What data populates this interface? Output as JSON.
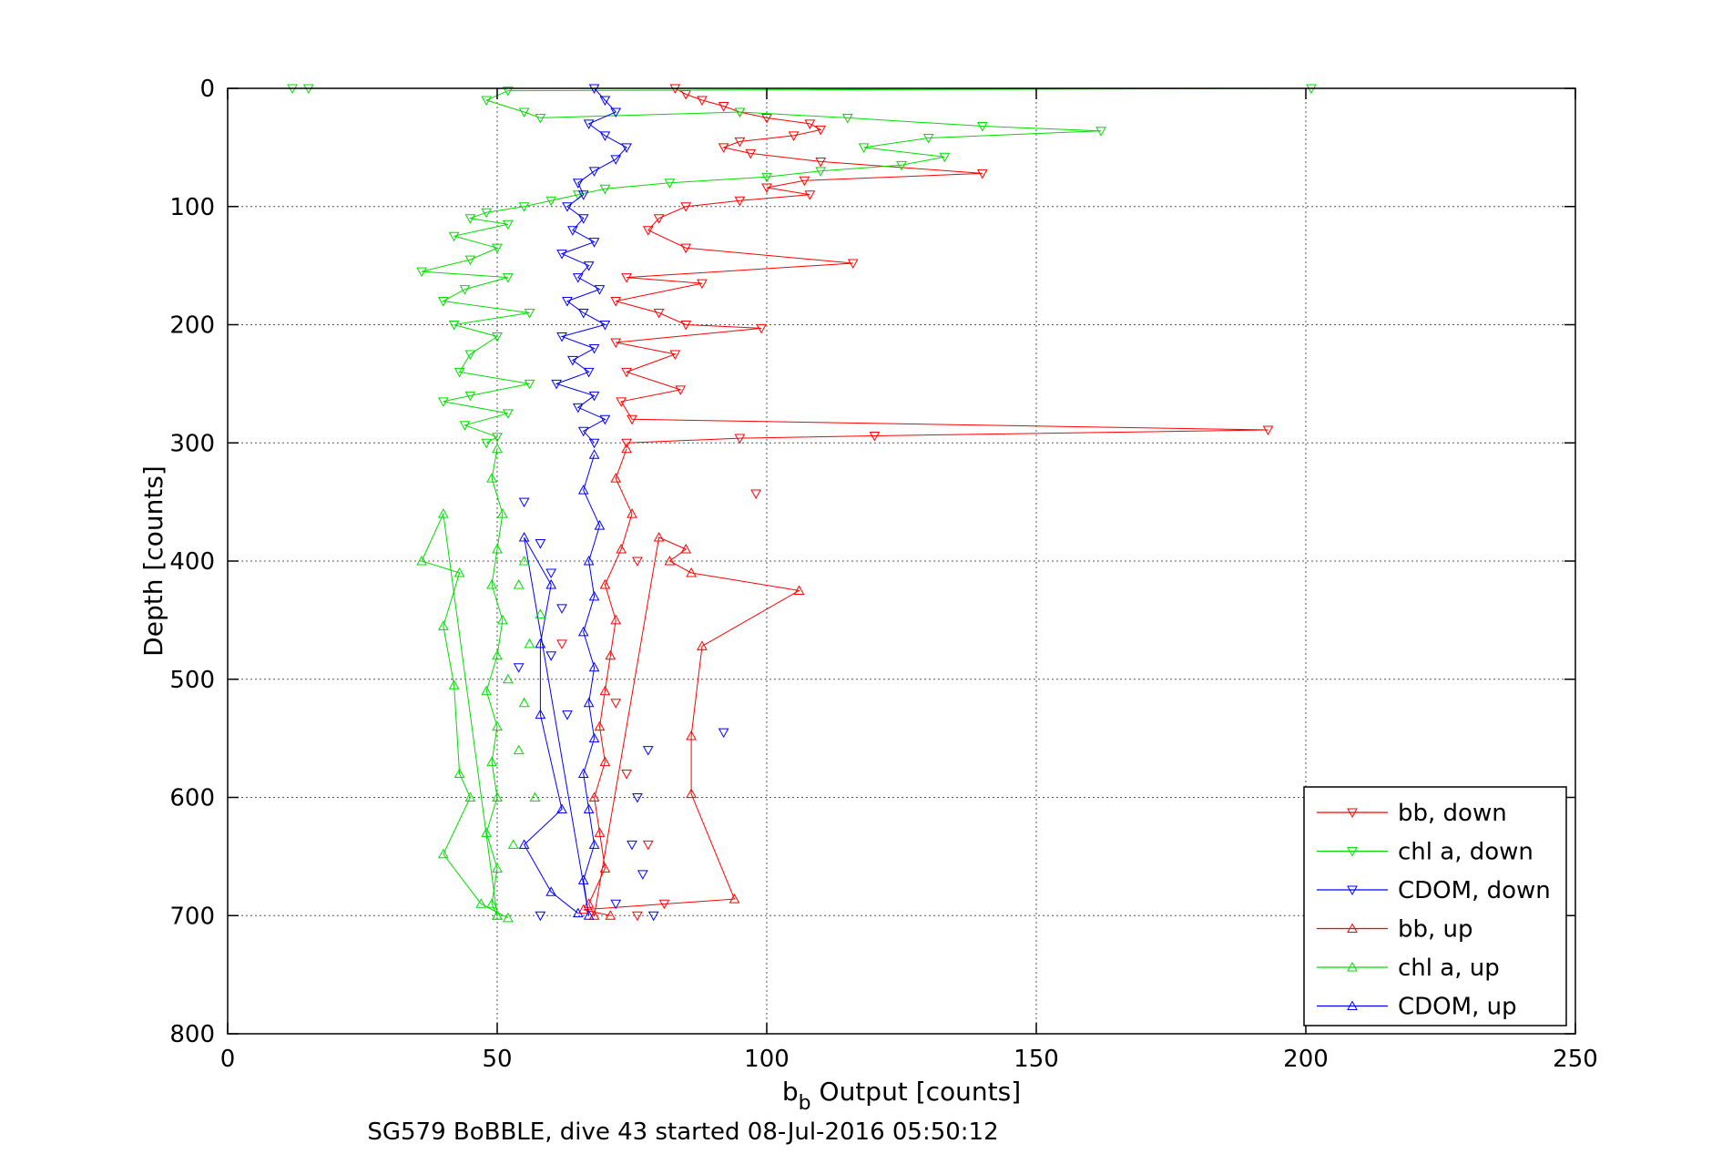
{
  "chart_data": {
    "type": "scatter",
    "xlabel_main": "b",
    "xlabel_sub": "b",
    "xlabel_rest": " Output [counts]",
    "ylabel": "Depth [counts]",
    "caption": "SG579 BoBBLE, dive 43 started 08-Jul-2016 05:50:12",
    "xlim": [
      0,
      250
    ],
    "ylim": [
      0,
      800
    ],
    "y_reversed": true,
    "grid": true,
    "legend_position": "bottom-right",
    "x_ticks": [
      "0",
      "50",
      "100",
      "150",
      "200",
      "250"
    ],
    "y_ticks": [
      "0",
      "100",
      "200",
      "300",
      "400",
      "500",
      "600",
      "700",
      "800"
    ],
    "colors": {
      "bb": "#ff0000",
      "chl": "#00dd00",
      "cdom": "#0000ff"
    },
    "series": [
      {
        "name": "bb, down",
        "color": "#ff0000",
        "marker": "triangle-down",
        "connected": true,
        "points": [
          [
            83,
            0
          ],
          [
            85,
            5
          ],
          [
            88,
            10
          ],
          [
            92,
            15
          ],
          [
            95,
            20
          ],
          [
            100,
            25
          ],
          [
            108,
            30
          ],
          [
            110,
            35
          ],
          [
            105,
            40
          ],
          [
            95,
            45
          ],
          [
            92,
            50
          ],
          [
            97,
            55
          ],
          [
            110,
            62
          ],
          [
            140,
            72
          ],
          [
            107,
            78
          ],
          [
            100,
            84
          ],
          [
            108,
            90
          ],
          [
            95,
            95
          ],
          [
            85,
            100
          ],
          [
            80,
            110
          ],
          [
            78,
            120
          ],
          [
            85,
            135
          ],
          [
            116,
            148
          ],
          [
            74,
            160
          ],
          [
            88,
            165
          ],
          [
            72,
            180
          ],
          [
            80,
            190
          ],
          [
            85,
            200
          ],
          [
            99,
            203
          ],
          [
            72,
            215
          ],
          [
            83,
            225
          ],
          [
            74,
            240
          ],
          [
            84,
            255
          ],
          [
            73,
            265
          ],
          [
            75,
            280
          ],
          [
            193,
            289
          ],
          [
            120,
            294
          ],
          [
            95,
            296
          ],
          [
            74,
            300
          ]
        ]
      },
      {
        "name": "chl a, down",
        "color": "#00dd00",
        "marker": "triangle-down",
        "connected": true,
        "points": [
          [
            12,
            0
          ],
          [
            15,
            0
          ],
          [
            201,
            0
          ],
          [
            52,
            2
          ],
          [
            48,
            10
          ],
          [
            55,
            20
          ],
          [
            58,
            25
          ],
          [
            95,
            20
          ],
          [
            115,
            25
          ],
          [
            140,
            32
          ],
          [
            162,
            36
          ],
          [
            130,
            42
          ],
          [
            118,
            50
          ],
          [
            133,
            58
          ],
          [
            125,
            65
          ],
          [
            110,
            70
          ],
          [
            100,
            75
          ],
          [
            82,
            80
          ],
          [
            70,
            85
          ],
          [
            65,
            90
          ],
          [
            60,
            95
          ],
          [
            55,
            100
          ],
          [
            48,
            105
          ],
          [
            45,
            110
          ],
          [
            52,
            115
          ],
          [
            42,
            125
          ],
          [
            50,
            135
          ],
          [
            45,
            145
          ],
          [
            36,
            155
          ],
          [
            52,
            160
          ],
          [
            44,
            170
          ],
          [
            40,
            180
          ],
          [
            56,
            190
          ],
          [
            42,
            200
          ],
          [
            50,
            210
          ],
          [
            45,
            225
          ],
          [
            43,
            240
          ],
          [
            56,
            250
          ],
          [
            45,
            260
          ],
          [
            40,
            265
          ],
          [
            52,
            275
          ],
          [
            44,
            285
          ],
          [
            50,
            295
          ],
          [
            48,
            300
          ]
        ]
      },
      {
        "name": "CDOM, down",
        "color": "#0000ff",
        "marker": "triangle-down",
        "connected": true,
        "points": [
          [
            68,
            0
          ],
          [
            70,
            10
          ],
          [
            72,
            20
          ],
          [
            67,
            30
          ],
          [
            70,
            40
          ],
          [
            74,
            50
          ],
          [
            72,
            60
          ],
          [
            68,
            70
          ],
          [
            65,
            80
          ],
          [
            66,
            90
          ],
          [
            63,
            100
          ],
          [
            66,
            110
          ],
          [
            64,
            120
          ],
          [
            68,
            130
          ],
          [
            62,
            140
          ],
          [
            67,
            150
          ],
          [
            65,
            160
          ],
          [
            69,
            170
          ],
          [
            63,
            180
          ],
          [
            66,
            190
          ],
          [
            70,
            200
          ],
          [
            62,
            210
          ],
          [
            68,
            220
          ],
          [
            64,
            230
          ],
          [
            67,
            240
          ],
          [
            61,
            250
          ],
          [
            68,
            260
          ],
          [
            65,
            270
          ],
          [
            70,
            280
          ],
          [
            66,
            290
          ],
          [
            68,
            300
          ]
        ]
      },
      {
        "name": "bb, up",
        "color": "#ff0000",
        "marker": "triangle-up",
        "connected": true,
        "points": [
          [
            74,
            305
          ],
          [
            72,
            330
          ],
          [
            75,
            360
          ],
          [
            73,
            390
          ],
          [
            70,
            420
          ],
          [
            72,
            450
          ],
          [
            71,
            480
          ],
          [
            70,
            510
          ],
          [
            69,
            540
          ],
          [
            70,
            570
          ],
          [
            68,
            600
          ],
          [
            69,
            630
          ],
          [
            70,
            660
          ],
          [
            67,
            690
          ],
          [
            68,
            700
          ],
          [
            80,
            380
          ],
          [
            85,
            390
          ],
          [
            82,
            400
          ],
          [
            86,
            410
          ],
          [
            106,
            425
          ],
          [
            88,
            472
          ],
          [
            86,
            548
          ],
          [
            86,
            597
          ],
          [
            94,
            686
          ],
          [
            66,
            695
          ],
          [
            71,
            700
          ]
        ]
      },
      {
        "name": "chl a, up",
        "color": "#00dd00",
        "marker": "triangle-up",
        "connected": true,
        "points": [
          [
            50,
            305
          ],
          [
            49,
            330
          ],
          [
            51,
            360
          ],
          [
            50,
            390
          ],
          [
            49,
            420
          ],
          [
            51,
            450
          ],
          [
            50,
            480
          ],
          [
            48,
            510
          ],
          [
            50,
            540
          ],
          [
            49,
            570
          ],
          [
            50,
            600
          ],
          [
            48,
            630
          ],
          [
            50,
            660
          ],
          [
            49,
            690
          ],
          [
            50,
            700
          ],
          [
            40,
            360
          ],
          [
            36,
            400
          ],
          [
            43,
            410
          ],
          [
            40,
            455
          ],
          [
            42,
            505
          ],
          [
            43,
            580
          ],
          [
            45,
            600
          ],
          [
            40,
            648
          ],
          [
            47,
            690
          ],
          [
            52,
            702
          ]
        ]
      },
      {
        "name": "CDOM, up",
        "color": "#0000ff",
        "marker": "triangle-up",
        "connected": true,
        "points": [
          [
            68,
            310
          ],
          [
            66,
            340
          ],
          [
            69,
            370
          ],
          [
            67,
            400
          ],
          [
            68,
            430
          ],
          [
            66,
            460
          ],
          [
            68,
            490
          ],
          [
            67,
            520
          ],
          [
            68,
            550
          ],
          [
            66,
            580
          ],
          [
            67,
            610
          ],
          [
            68,
            640
          ],
          [
            66,
            670
          ],
          [
            67,
            700
          ],
          [
            55,
            380
          ],
          [
            60,
            420
          ],
          [
            58,
            470
          ],
          [
            58,
            530
          ],
          [
            62,
            610
          ],
          [
            55,
            640
          ],
          [
            60,
            680
          ],
          [
            65,
            698
          ]
        ]
      }
    ],
    "scatter_only_down": {
      "bb": [
        [
          98,
          343
        ],
        [
          76,
          400
        ],
        [
          62,
          470
        ],
        [
          72,
          520
        ],
        [
          74,
          580
        ],
        [
          78,
          640
        ],
        [
          81,
          690
        ],
        [
          76,
          700
        ]
      ],
      "chl": [
        [
          55,
          400
        ],
        [
          54,
          420
        ],
        [
          58,
          445
        ],
        [
          56,
          470
        ],
        [
          52,
          500
        ],
        [
          55,
          520
        ],
        [
          54,
          560
        ],
        [
          57,
          600
        ],
        [
          53,
          640
        ],
        [
          50,
          700
        ]
      ],
      "cdom": [
        [
          55,
          350
        ],
        [
          58,
          385
        ],
        [
          60,
          410
        ],
        [
          62,
          440
        ],
        [
          60,
          480
        ],
        [
          54,
          490
        ],
        [
          63,
          530
        ],
        [
          92,
          545
        ],
        [
          78,
          560
        ],
        [
          76,
          600
        ],
        [
          75,
          640
        ],
        [
          77,
          665
        ],
        [
          72,
          690
        ],
        [
          79,
          700
        ],
        [
          58,
          700
        ]
      ]
    }
  }
}
